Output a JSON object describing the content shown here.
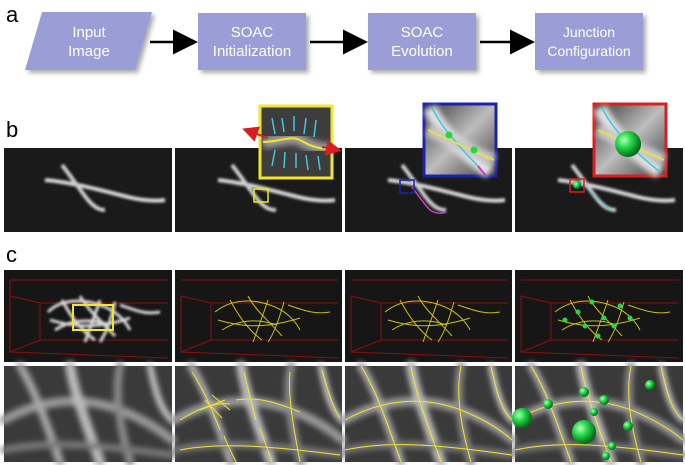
{
  "panel_a": {
    "letter": "a",
    "steps": [
      {
        "line1": "Input",
        "line2": "Image"
      },
      {
        "line1": "SOAC",
        "line2": "Initialization"
      },
      {
        "line1": "SOAC",
        "line2": "Evolution"
      },
      {
        "line1": "Junction",
        "line2": "Configuration"
      }
    ],
    "box_color": "#9b9ed6"
  },
  "panel_b": {
    "letter": "b"
  },
  "panel_c": {
    "letter": "c"
  },
  "colors": {
    "yellow": "#f2e629",
    "blue": "#1c22a8",
    "red": "#d81e1e",
    "green": "#22d84a",
    "cyan": "#40c8e0",
    "magenta": "#c040c0",
    "frame_red": "#8a1010"
  }
}
